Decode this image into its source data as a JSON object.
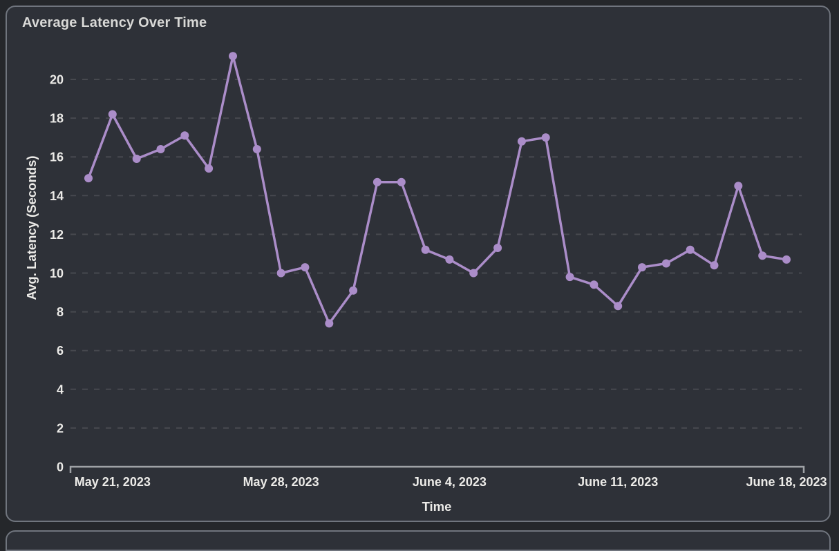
{
  "page": {
    "background_color": "#25272b",
    "card_background_color": "#2e3138",
    "card_border_color": "#70757e"
  },
  "chart_data": {
    "type": "line",
    "title": "Average Latency Over Time",
    "xlabel": "Time",
    "ylabel": "Avg. Latency (Seconds)",
    "x": [
      "2023-05-20",
      "2023-05-21",
      "2023-05-22",
      "2023-05-23",
      "2023-05-24",
      "2023-05-25",
      "2023-05-26",
      "2023-05-27",
      "2023-05-28",
      "2023-05-29",
      "2023-05-30",
      "2023-05-31",
      "2023-06-01",
      "2023-06-02",
      "2023-06-03",
      "2023-06-04",
      "2023-06-05",
      "2023-06-06",
      "2023-06-07",
      "2023-06-08",
      "2023-06-09",
      "2023-06-10",
      "2023-06-11",
      "2023-06-12",
      "2023-06-13",
      "2023-06-14",
      "2023-06-15",
      "2023-06-16",
      "2023-06-17",
      "2023-06-18"
    ],
    "values": [
      14.9,
      18.2,
      15.9,
      16.4,
      17.1,
      15.4,
      21.2,
      16.4,
      10.0,
      10.3,
      7.4,
      9.1,
      14.7,
      14.7,
      11.2,
      10.7,
      10.0,
      11.3,
      16.8,
      17.0,
      9.8,
      9.4,
      8.3,
      10.3,
      10.5,
      11.2,
      10.4,
      14.5,
      10.9,
      10.7
    ],
    "y_ticks": [
      0,
      2,
      4,
      6,
      8,
      10,
      12,
      14,
      16,
      18,
      20
    ],
    "ylim": [
      0,
      21.6
    ],
    "x_tick_labels": [
      {
        "index": 1,
        "label": "May 21, 2023"
      },
      {
        "index": 8,
        "label": "May 28, 2023"
      },
      {
        "index": 15,
        "label": "June 4, 2023"
      },
      {
        "index": 22,
        "label": "June 11, 2023"
      },
      {
        "index": 29,
        "label": "June 18, 2023"
      }
    ],
    "legend": "none",
    "grid": "horizontal-dashed",
    "line_color": "#ab8dc9",
    "marker": "circle",
    "grid_color": "#47494f",
    "axis_color": "#9fa2a6",
    "text_color": "#ecebe8"
  }
}
